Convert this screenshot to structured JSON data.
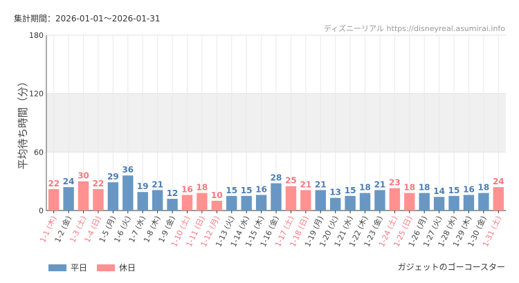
{
  "header": {
    "period": "集計期間：2026-01-01〜2026-01-31",
    "source": "ディズニーリアル https://disneyreal.asumirai.info"
  },
  "legend": [
    {
      "label": "平日",
      "color": "#6897c4"
    },
    {
      "label": "休日",
      "color": "#ff9191"
    }
  ],
  "attraction": "ガジェットのゴーコースター",
  "chart_data": {
    "type": "bar",
    "title": "",
    "ylabel": "平均待ち時間（分）",
    "xlabel": "",
    "ylim": [
      0,
      180
    ],
    "yticks": [
      "0",
      "60",
      "120",
      "180"
    ],
    "shaded_band": [
      60,
      120
    ],
    "colors": {
      "weekday": "#6897c4",
      "holiday": "#ff9191",
      "weekday_text": "#4a7db3",
      "holiday_text": "#f7777f",
      "tick_text": "#444"
    },
    "categories": [
      "1-1 (木)",
      "1-2 (金)",
      "1-3 (土)",
      "1-4 (日)",
      "1-5 (月)",
      "1-6 (火)",
      "1-7 (水)",
      "1-8 (木)",
      "1-9 (金)",
      "1-10 (土)",
      "1-11 (日)",
      "1-12 (月)",
      "1-13 (火)",
      "1-14 (水)",
      "1-15 (木)",
      "1-16 (金)",
      "1-17 (土)",
      "1-18 (日)",
      "1-19 (月)",
      "1-20 (火)",
      "1-21 (水)",
      "1-22 (木)",
      "1-23 (金)",
      "1-24 (土)",
      "1-25 (日)",
      "1-26 (月)",
      "1-27 (火)",
      "1-28 (水)",
      "1-29 (木)",
      "1-30 (金)",
      "1-31 (土)"
    ],
    "values": [
      22,
      24,
      30,
      22,
      29,
      36,
      19,
      21,
      12,
      16,
      18,
      10,
      15,
      15,
      16,
      28,
      25,
      21,
      21,
      13,
      15,
      18,
      21,
      23,
      18,
      18,
      14,
      15,
      16,
      18,
      24
    ],
    "holiday": [
      true,
      false,
      true,
      true,
      false,
      false,
      false,
      false,
      false,
      true,
      true,
      true,
      false,
      false,
      false,
      false,
      true,
      true,
      false,
      false,
      false,
      false,
      false,
      true,
      true,
      false,
      false,
      false,
      false,
      false,
      true
    ]
  }
}
